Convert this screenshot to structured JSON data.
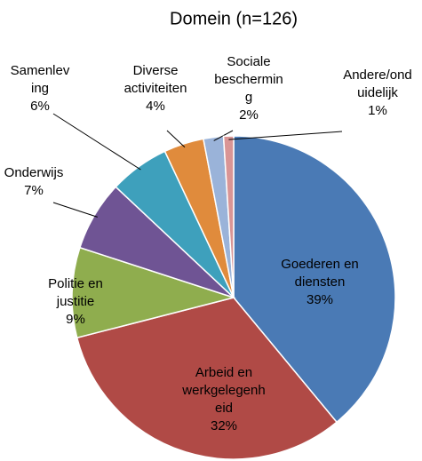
{
  "chart_data": {
    "type": "pie",
    "title": "Domein (n=126)",
    "categories": [
      "Goederen en diensten",
      "Arbeid en werkgelegenheid",
      "Politie en justitie",
      "Onderwijs",
      "Samenleving",
      "Diverse activiteiten",
      "Sociale bescherming",
      "Andere/onduidelijk"
    ],
    "values": [
      39,
      32,
      9,
      7,
      6,
      4,
      2,
      1
    ],
    "value_labels": [
      "39%",
      "32%",
      "9%",
      "7%",
      "6%",
      "4%",
      "2%",
      "1%"
    ],
    "colors": [
      "#4a7ab5",
      "#b04a46",
      "#8fad4e",
      "#6f5494",
      "#3ea0bc",
      "#e08b3c",
      "#9ab3d9",
      "#d99595"
    ]
  }
}
